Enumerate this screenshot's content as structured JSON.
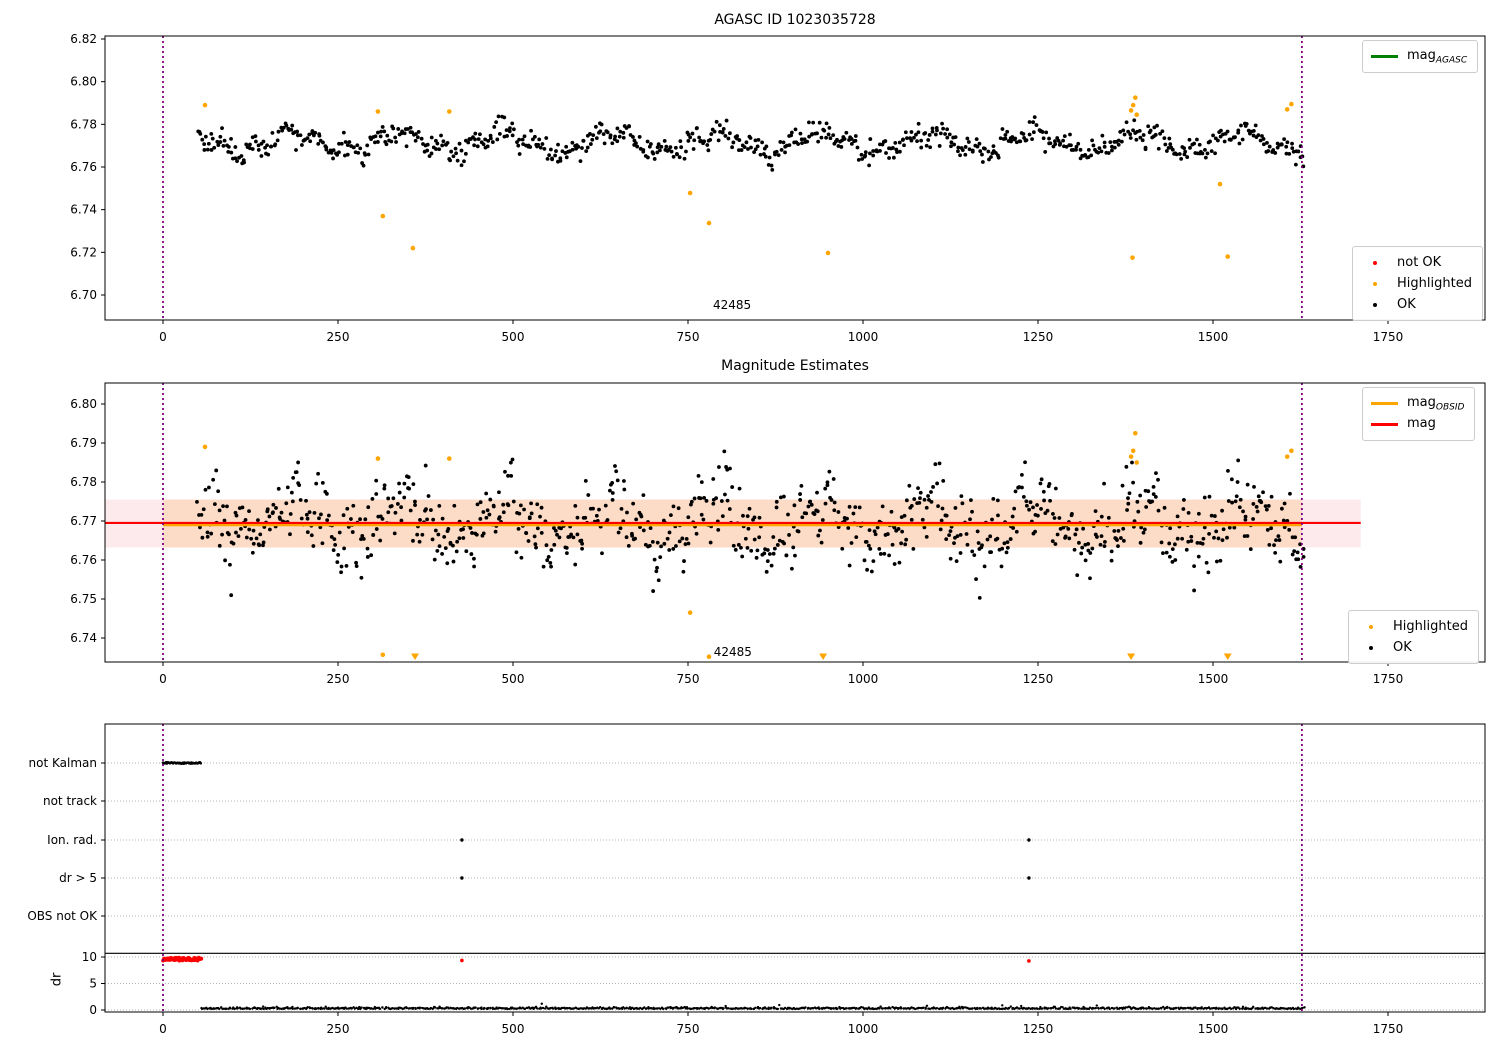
{
  "chart_data": [
    {
      "type": "scatter",
      "title": "AGASC ID 1023035728",
      "xlim": [
        -83,
        1889
      ],
      "ylim": [
        6.686,
        6.8214
      ],
      "xticks": [
        0,
        250,
        500,
        750,
        1000,
        1250,
        1500,
        1750
      ],
      "xtick_labels": [
        "0",
        "250",
        "500",
        "750",
        "1000",
        "1250",
        "1500",
        "1750"
      ],
      "yticks": [
        6.82,
        6.8,
        6.78,
        6.76,
        6.74,
        6.72,
        6.7
      ],
      "ytick_labels": [
        "6.82",
        "6.80",
        "6.78",
        "6.76",
        "6.74",
        "6.72",
        "6.70"
      ],
      "grid": false,
      "vlines": {
        "color": "#800080",
        "xs": [
          0,
          1627
        ]
      },
      "annotation": {
        "text": "42485",
        "x": 813,
        "y": 6.695
      },
      "legend": {
        "position": "upper right",
        "entries": [
          {
            "label_main": "mag",
            "label_sub": "AGASC",
            "color": "#008000",
            "marker": "line"
          }
        ]
      },
      "legend2": {
        "position": "lower right",
        "entries": [
          {
            "label": "not OK",
            "color": "#ff0000",
            "marker": "dot"
          },
          {
            "label": "Highlighted",
            "color": "#ffa500",
            "marker": "dot"
          },
          {
            "label": "OK",
            "color": "#000000",
            "marker": "dot"
          }
        ]
      },
      "ok_series": {
        "color": "#000000",
        "synth": {
          "seed": 42,
          "n": 780,
          "x0": 50,
          "x1": 1630,
          "mean": 6.7715,
          "a1": 0.0045,
          "p1": 24,
          "a2": 0.002,
          "p2": 7.1,
          "noise": 0.0026,
          "ymin": 6.754,
          "ymax": 6.786
        }
      },
      "highlighted_points": {
        "color": "#ffa500",
        "points": [
          [
            60,
            6.789
          ],
          [
            307,
            6.786
          ],
          [
            314,
            6.737
          ],
          [
            357,
            6.722
          ],
          [
            409,
            6.786
          ],
          [
            753,
            6.7478
          ],
          [
            780,
            6.7337
          ],
          [
            950,
            6.7197
          ],
          [
            1383,
            6.7865
          ],
          [
            1386,
            6.789
          ],
          [
            1389,
            6.7925
          ],
          [
            1391,
            6.7845
          ],
          [
            1385,
            6.7175
          ],
          [
            1510,
            6.752
          ],
          [
            1521,
            6.718
          ],
          [
            1606,
            6.787
          ],
          [
            1612,
            6.7895
          ]
        ]
      }
    },
    {
      "type": "scatter",
      "title": "Magnitude Estimates",
      "xlim": [
        -83,
        1889
      ],
      "ylim": [
        6.7338,
        6.8054
      ],
      "xticks": [
        0,
        250,
        500,
        750,
        1000,
        1250,
        1500,
        1750
      ],
      "xtick_labels": [
        "0",
        "250",
        "500",
        "750",
        "1000",
        "1250",
        "1500",
        "1750"
      ],
      "yticks": [
        6.8,
        6.79,
        6.78,
        6.77,
        6.76,
        6.75,
        6.74
      ],
      "ytick_labels": [
        "6.80",
        "6.79",
        "6.78",
        "6.77",
        "6.76",
        "6.75",
        "6.74"
      ],
      "grid": false,
      "vlines": {
        "color": "#800080",
        "xs": [
          0,
          1627
        ]
      },
      "annotation": {
        "text": "42485",
        "x": 814,
        "y": 6.7362
      },
      "band": {
        "y_low": 6.7632,
        "y_high": 6.7755,
        "x0": -83,
        "x1": 1711,
        "color": "rgba(220,20,60,0.09)"
      },
      "band_overlay": {
        "y_low": 6.7632,
        "y_high": 6.7755,
        "x0": 0,
        "x1": 1627,
        "color": "rgba(255,140,0,0.16)"
      },
      "hline_mag": {
        "y": 6.7695,
        "x0": -83,
        "x1": 1711,
        "color": "#ff0000"
      },
      "hline_obsid": {
        "y": 6.769,
        "x0": 0,
        "x1": 1627,
        "color": "#ffa500"
      },
      "legend": {
        "position": "upper right",
        "entries": [
          {
            "label_main": "mag",
            "label_sub": "OBSID",
            "color": "#ffa500",
            "marker": "line"
          },
          {
            "label_main": "mag",
            "label_sub": "",
            "color": "#ff0000",
            "marker": "line"
          }
        ]
      },
      "legend2": {
        "position": "lower right",
        "entries": [
          {
            "label": "Highlighted",
            "color": "#ffa500",
            "marker": "dot"
          },
          {
            "label": "OK",
            "color": "#000000",
            "marker": "dot"
          }
        ]
      },
      "ok_series": {
        "color": "#000000",
        "synth": {
          "seed": 7,
          "n": 900,
          "x0": 50,
          "x1": 1630,
          "mean": 6.7698,
          "a1": 0.005,
          "p1": 24,
          "a2": 0.0028,
          "p2": 6.1,
          "noise": 0.0045,
          "ymin": 6.7465,
          "ymax": 6.788
        }
      },
      "highlighted_points": {
        "color": "#ffa500",
        "points": [
          [
            60,
            6.789
          ],
          [
            307,
            6.786
          ],
          [
            409,
            6.786
          ],
          [
            753,
            6.7465
          ],
          [
            1383,
            6.7865
          ],
          [
            1386,
            6.788
          ],
          [
            1389,
            6.7925
          ],
          [
            1391,
            6.785
          ],
          [
            1606,
            6.7865
          ],
          [
            1612,
            6.788
          ]
        ]
      },
      "offscale_low_markers": {
        "color": "#ffa500",
        "dots": [
          [
            314,
            6.7357
          ],
          [
            780,
            6.7352
          ]
        ],
        "triangle_xs": [
          360,
          943,
          1383,
          1521
        ]
      }
    },
    {
      "type": "scatter",
      "title": "",
      "xlim": [
        -83,
        1889
      ],
      "xticks": [
        0,
        250,
        500,
        750,
        1000,
        1250,
        1500,
        1750
      ],
      "xtick_labels": [
        "0",
        "250",
        "500",
        "750",
        "1000",
        "1250",
        "1500",
        "1750"
      ],
      "categories": [
        "not Kalman",
        "not track",
        "Ion. rad.",
        "dr > 5",
        "OBS not OK"
      ],
      "dr_label": "dr",
      "dr_ticks": [
        10,
        5,
        0
      ],
      "grid": true,
      "grid_color": "#b5b5b5",
      "separator_line_dr": 10.7,
      "vlines": {
        "color": "#800080",
        "xs": [
          0,
          1627
        ]
      },
      "not_kalman_run": {
        "x0": 0,
        "x1": 55,
        "color": "#000000"
      },
      "dr_flagged_run": {
        "x0": 0,
        "x1": 55,
        "dr": 9.6,
        "color": "#ff0000"
      },
      "ion_rad_xs": [
        427,
        1237
      ],
      "dr_gt5_xs": [
        427,
        1237
      ],
      "dr_flagged_points": [
        [
          427,
          9.35
        ],
        [
          1237,
          9.25
        ]
      ],
      "dr_series": {
        "color": "#000000",
        "synth": {
          "seed": 11,
          "n": 900,
          "x0": 55,
          "x1": 1630,
          "base": 0.2,
          "noise": 0.16,
          "spike_prob": 0.015,
          "spike_max": 0.9,
          "ymax": 1.6
        }
      }
    }
  ]
}
